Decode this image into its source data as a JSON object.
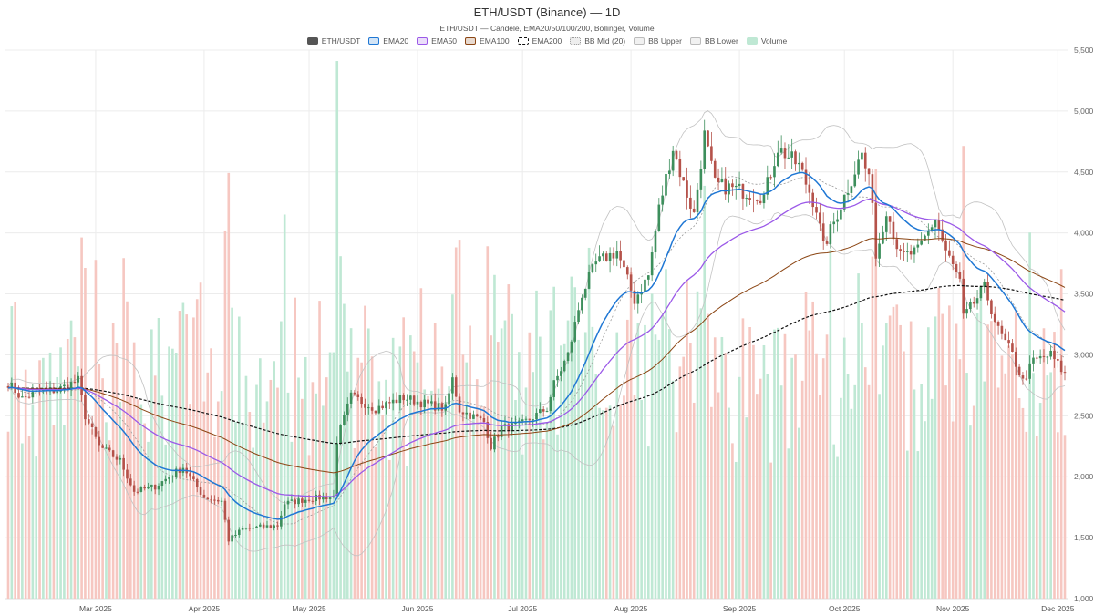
{
  "chart_data": {
    "type": "candlestick",
    "title": "ETH/USDT (Binance) — 1D",
    "subtitle": "ETH/USDT — Candele, EMA20/50/100/200, Bollinger, Volume",
    "x_range": [
      "2025-02-04",
      "2025-12-03"
    ],
    "x_ticks": [
      {
        "date": "2025-03-01",
        "label": "Mar 2025"
      },
      {
        "date": "2025-04-01",
        "label": "Apr 2025"
      },
      {
        "date": "2025-05-01",
        "label": "May 2025"
      },
      {
        "date": "2025-06-01",
        "label": "Jun 2025"
      },
      {
        "date": "2025-07-01",
        "label": "Jul 2025"
      },
      {
        "date": "2025-08-01",
        "label": "Aug 2025"
      },
      {
        "date": "2025-09-01",
        "label": "Sep 2025"
      },
      {
        "date": "2025-10-01",
        "label": "Oct 2025"
      },
      {
        "date": "2025-11-01",
        "label": "Nov 2025"
      },
      {
        "date": "2025-12-01",
        "label": "Dec 2025"
      }
    ],
    "y_range": [
      1000,
      5500
    ],
    "y_ticks": [
      "1,000",
      "1,500",
      "2,000",
      "2,500",
      "3,000",
      "3,500",
      "4,000",
      "4,500",
      "5,000",
      "5,500"
    ],
    "y_tick_values": [
      1000,
      1500,
      2000,
      2500,
      3000,
      3500,
      4000,
      4500,
      5000,
      5500
    ],
    "grid": true,
    "legend_position": "top-center",
    "legend": [
      {
        "label": "ETH/USDT",
        "style": "solid",
        "color": "#555555"
      },
      {
        "label": "EMA20",
        "style": "line",
        "color": "#1f77d4"
      },
      {
        "label": "EMA50",
        "style": "line",
        "color": "#9b59e8"
      },
      {
        "label": "EMA100",
        "style": "line",
        "color": "#8b4513"
      },
      {
        "label": "EMA200",
        "style": "dashed",
        "color": "#111111"
      },
      {
        "label": "BB Mid (20)",
        "style": "dotted",
        "color": "#999999"
      },
      {
        "label": "BB Upper",
        "style": "line",
        "color": "#bbbbbb"
      },
      {
        "label": "BB Lower",
        "style": "line",
        "color": "#bbbbbb"
      },
      {
        "label": "Volume",
        "style": "fill",
        "color": "#bfe8d4"
      }
    ],
    "colors": {
      "up": "#3d8f5c",
      "down": "#b5524a",
      "volume_up": "#bfe8d4",
      "volume_down": "#f6c7c1",
      "ema20": "#1f77d4",
      "ema50": "#9b59e8",
      "ema100": "#8b4513",
      "ema200": "#111111",
      "bb_mid": "#999999",
      "bb_band": "#c2c2c2",
      "grid": "#ececec"
    },
    "close_anchors": [
      [
        "2025-02-04",
        2770
      ],
      [
        "2025-02-08",
        2640
      ],
      [
        "2025-02-13",
        2700
      ],
      [
        "2025-02-18",
        2710
      ],
      [
        "2025-02-24",
        2790
      ],
      [
        "2025-02-26",
        2500
      ],
      [
        "2025-03-02",
        2250
      ],
      [
        "2025-03-08",
        2130
      ],
      [
        "2025-03-12",
        1880
      ],
      [
        "2025-03-18",
        1920
      ],
      [
        "2025-03-22",
        2000
      ],
      [
        "2025-03-26",
        2080
      ],
      [
        "2025-04-01",
        1830
      ],
      [
        "2025-04-06",
        1800
      ],
      [
        "2025-04-08",
        1480
      ],
      [
        "2025-04-12",
        1570
      ],
      [
        "2025-04-18",
        1590
      ],
      [
        "2025-04-22",
        1600
      ],
      [
        "2025-04-24",
        1780
      ],
      [
        "2025-05-01",
        1820
      ],
      [
        "2025-05-08",
        1840
      ],
      [
        "2025-05-09",
        2300
      ],
      [
        "2025-05-13",
        2660
      ],
      [
        "2025-05-20",
        2560
      ],
      [
        "2025-05-28",
        2650
      ],
      [
        "2025-06-03",
        2600
      ],
      [
        "2025-06-09",
        2560
      ],
      [
        "2025-06-11",
        2800
      ],
      [
        "2025-06-13",
        2550
      ],
      [
        "2025-06-20",
        2450
      ],
      [
        "2025-06-22",
        2250
      ],
      [
        "2025-06-25",
        2400
      ],
      [
        "2025-06-30",
        2420
      ],
      [
        "2025-07-08",
        2560
      ],
      [
        "2025-07-10",
        2760
      ],
      [
        "2025-07-14",
        3000
      ],
      [
        "2025-07-18",
        3500
      ],
      [
        "2025-07-22",
        3750
      ],
      [
        "2025-07-28",
        3850
      ],
      [
        "2025-08-02",
        3450
      ],
      [
        "2025-08-06",
        3650
      ],
      [
        "2025-08-09",
        4200
      ],
      [
        "2025-08-13",
        4700
      ],
      [
        "2025-08-16",
        4400
      ],
      [
        "2025-08-19",
        4150
      ],
      [
        "2025-08-22",
        4800
      ],
      [
        "2025-08-25",
        4400
      ],
      [
        "2025-09-01",
        4350
      ],
      [
        "2025-09-08",
        4300
      ],
      [
        "2025-09-12",
        4700
      ],
      [
        "2025-09-18",
        4550
      ],
      [
        "2025-09-23",
        4200
      ],
      [
        "2025-09-25",
        3880
      ],
      [
        "2025-10-01",
        4300
      ],
      [
        "2025-10-06",
        4650
      ],
      [
        "2025-10-09",
        4300
      ],
      [
        "2025-10-10",
        3800
      ],
      [
        "2025-10-13",
        4200
      ],
      [
        "2025-10-17",
        3800
      ],
      [
        "2025-10-22",
        3850
      ],
      [
        "2025-10-27",
        4120
      ],
      [
        "2025-10-30",
        3850
      ],
      [
        "2025-11-03",
        3600
      ],
      [
        "2025-11-04",
        3300
      ],
      [
        "2025-11-10",
        3550
      ],
      [
        "2025-11-14",
        3200
      ],
      [
        "2025-11-18",
        3000
      ],
      [
        "2025-11-21",
        2780
      ],
      [
        "2025-11-24",
        2950
      ],
      [
        "2025-11-29",
        3000
      ],
      [
        "2025-12-03",
        2840
      ]
    ],
    "volume_range": [
      0,
      5000
    ]
  }
}
